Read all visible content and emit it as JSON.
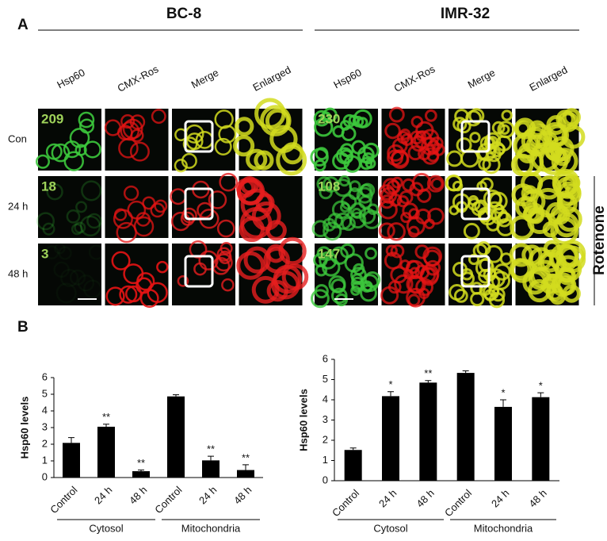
{
  "panel_a": {
    "label": "A",
    "lines": [
      {
        "name": "BC-8",
        "image_numbers": [
          "209",
          "18",
          "3"
        ]
      },
      {
        "name": "IMR-32",
        "image_numbers": [
          "230",
          "108",
          "147"
        ]
      }
    ],
    "columns": [
      "Hsp60",
      "CMX-Ros",
      "Merge",
      "Enlarged"
    ],
    "rows": [
      "Con",
      "24 h",
      "48 h"
    ],
    "treatment": "Rotenone"
  },
  "panel_b": {
    "label": "B"
  },
  "chart_data": [
    {
      "type": "bar",
      "y_label": "Hsp60 levels",
      "categories": [
        "Control",
        "24 h",
        "48 h",
        "Control",
        "24 h",
        "48 h"
      ],
      "x_groups": [
        "Cytosol",
        "Mitochondria"
      ],
      "values": [
        2.08,
        3.05,
        0.38,
        4.87,
        1.03,
        0.45
      ],
      "errors": [
        0.32,
        0.15,
        0.07,
        0.1,
        0.25,
        0.32
      ],
      "annotations": [
        null,
        "**",
        "**",
        null,
        "**",
        "**"
      ],
      "color": "#000000",
      "ylim": [
        0,
        6
      ],
      "yticks": [
        0,
        1,
        2,
        3,
        4,
        5,
        6
      ]
    },
    {
      "type": "bar",
      "y_label": "Hsp60 levels",
      "categories": [
        "Control",
        "24 h",
        "48 h",
        "Control",
        "24 h",
        "48 h"
      ],
      "x_groups": [
        "Cytosol",
        "Mitochondria"
      ],
      "values": [
        1.52,
        4.18,
        4.85,
        5.33,
        3.65,
        4.13
      ],
      "errors": [
        0.1,
        0.22,
        0.1,
        0.1,
        0.35,
        0.22
      ],
      "annotations": [
        null,
        "*",
        "**",
        null,
        "*",
        "*"
      ],
      "color": "#000000",
      "ylim": [
        0,
        6
      ],
      "yticks": [
        0,
        1,
        2,
        3,
        4,
        5,
        6
      ]
    }
  ]
}
